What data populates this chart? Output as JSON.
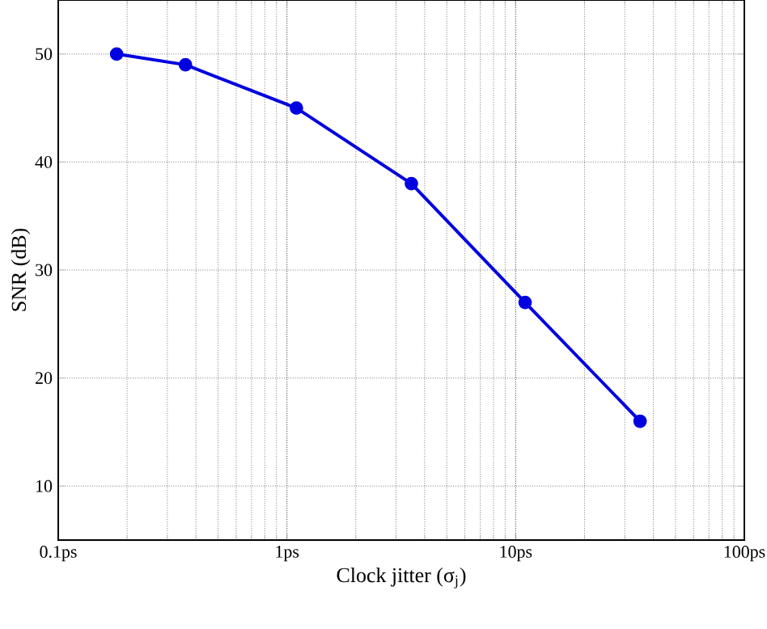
{
  "chart_data": {
    "type": "line",
    "xlabel": "Clock jitter (σ$_{j}$)",
    "ylabel": "SNR (dB)",
    "x": [
      0.18,
      0.36,
      1.1,
      3.5,
      11,
      35
    ],
    "series": [
      {
        "color": "#0000e0",
        "values": [
          50,
          49,
          45,
          38,
          27,
          16
        ]
      }
    ],
    "log": "x",
    "xlim": [
      0.1,
      100
    ],
    "ylim": [
      5,
      55
    ],
    "xticks": [
      {
        "value": 0.1,
        "label": "0.1ps"
      },
      {
        "value": 1,
        "label": "1ps"
      },
      {
        "value": 10,
        "label": "10ps"
      },
      {
        "value": 100,
        "label": "100ps"
      }
    ],
    "yticks": [
      10,
      20,
      30,
      40,
      50
    ],
    "grid": true,
    "marker": "circle",
    "line_style": "solid"
  }
}
